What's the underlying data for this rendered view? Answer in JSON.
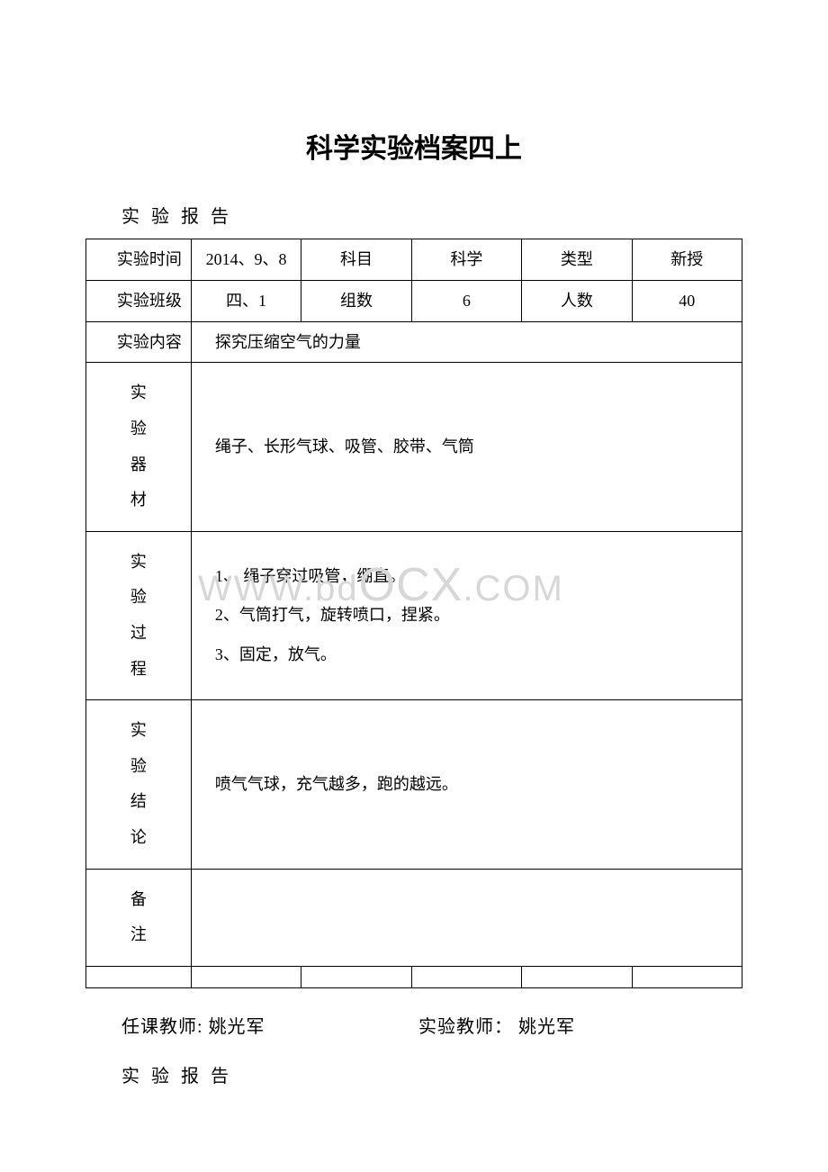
{
  "title": "科学实验档案四上",
  "subtitle1": "实 验 报 告",
  "row1": {
    "c1": "实验时间",
    "c2": "2014、9、8",
    "c3": "科目",
    "c4": "科学",
    "c5": "类型",
    "c6": "新授"
  },
  "row2": {
    "c1": "实验班级",
    "c2": "四、1",
    "c3": "组数",
    "c4": "6",
    "c5": "人数",
    "c6": "40"
  },
  "row3": {
    "c1": "实验内容",
    "c2": "探究压缩空气的力量"
  },
  "row4": {
    "label": [
      "实",
      "验",
      "器",
      "材"
    ],
    "value": "绳子、长形气球、吸管、胶带、气筒"
  },
  "row5": {
    "label": [
      "实",
      "验",
      "过",
      "程"
    ],
    "lines": [
      "1、       绳子穿过吸管，绷直。",
      "2、气筒打气，旋转喷口，捏紧。",
      "3、固定，放气。"
    ]
  },
  "row6": {
    "label": [
      "实",
      "验",
      "结",
      "论"
    ],
    "value": "喷气气球，充气越多，跑的越远。"
  },
  "row7": {
    "label": [
      "备",
      "注"
    ],
    "value": ""
  },
  "footer": {
    "f1_label": "任课教师:",
    "f1_value": "姚光军",
    "f2_label": "实验教师：",
    "f2_value": "姚光军"
  },
  "subtitle2": "实 验 报 告",
  "watermark": {
    "small": "WWW.",
    "mid": "bd",
    "big": "OCX",
    "tail": ".COM"
  }
}
